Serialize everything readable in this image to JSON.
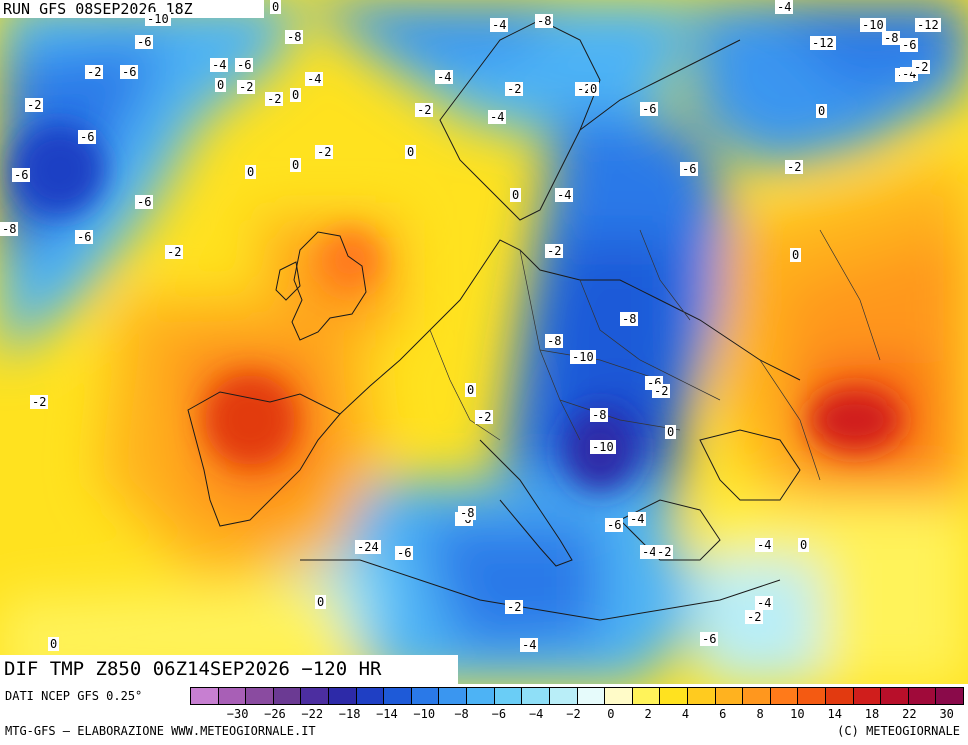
{
  "header": {
    "run_label": "RUN GFS 08SEP2026 18Z",
    "map_title": "DIF TMP Z850 06Z14SEP2026 −120 HR"
  },
  "footer": {
    "source": "DATI NCEP GFS 0.25°",
    "credit_left": "MTG-GFS — ELABORAZIONE WWW.METEOGIORNALE.IT",
    "credit_right": "(C) METEOGIORNALE"
  },
  "legend": {
    "colors": [
      "#c77fd1",
      "#a85fb6",
      "#8a4ba0",
      "#6b3a93",
      "#4c2ea0",
      "#2d2aa8",
      "#1f3fc4",
      "#1e5ad8",
      "#2a79e8",
      "#3a96f0",
      "#4db3f5",
      "#6acdf6",
      "#8fdff7",
      "#b9eef8",
      "#e6fbfb",
      "#fffbc8",
      "#fff35a",
      "#ffe21f",
      "#ffcb1f",
      "#ffb21f",
      "#ff971e",
      "#ff7a1a",
      "#f45a12",
      "#e23a10",
      "#d01e1c",
      "#b80f2a",
      "#a00a3a",
      "#8a0a4a"
    ],
    "ticks": [
      "−30",
      "−26",
      "−22",
      "−18",
      "−14",
      "−10",
      "−8",
      "−6",
      "−4",
      "−2",
      "0",
      "2",
      "4",
      "6",
      "8",
      "10",
      "14",
      "18",
      "22",
      "30"
    ]
  },
  "contour_labels": [
    "-4",
    "-2",
    "-6",
    "-4",
    "-6",
    "-2",
    "0",
    "-2",
    "-2",
    "-6",
    "-4",
    "0",
    "-2",
    "0",
    "0",
    "-6",
    "-2",
    "-4",
    "0",
    "-8",
    "0",
    "-6",
    "-2",
    "-6",
    "-8",
    "-2",
    "-4",
    "-8",
    "-10",
    "0",
    "-4",
    "-2",
    "-4",
    "-4",
    "-6",
    "-6",
    "-8",
    "-10",
    "-8",
    "-10",
    "0",
    "-2",
    "-8",
    "-6",
    "-6",
    "-6",
    "-4",
    "-2",
    "0",
    "-4",
    "-6",
    "-4",
    "-2",
    "-4",
    "0",
    "-2",
    "-2",
    "0",
    "-2",
    "0",
    "-4",
    "-12",
    "-10",
    "-8",
    "-6",
    "-12",
    "-4",
    "-2",
    "0",
    "0",
    "-2",
    "-24",
    "-8",
    "0",
    "-4",
    "-2",
    "-6",
    "-6"
  ]
}
